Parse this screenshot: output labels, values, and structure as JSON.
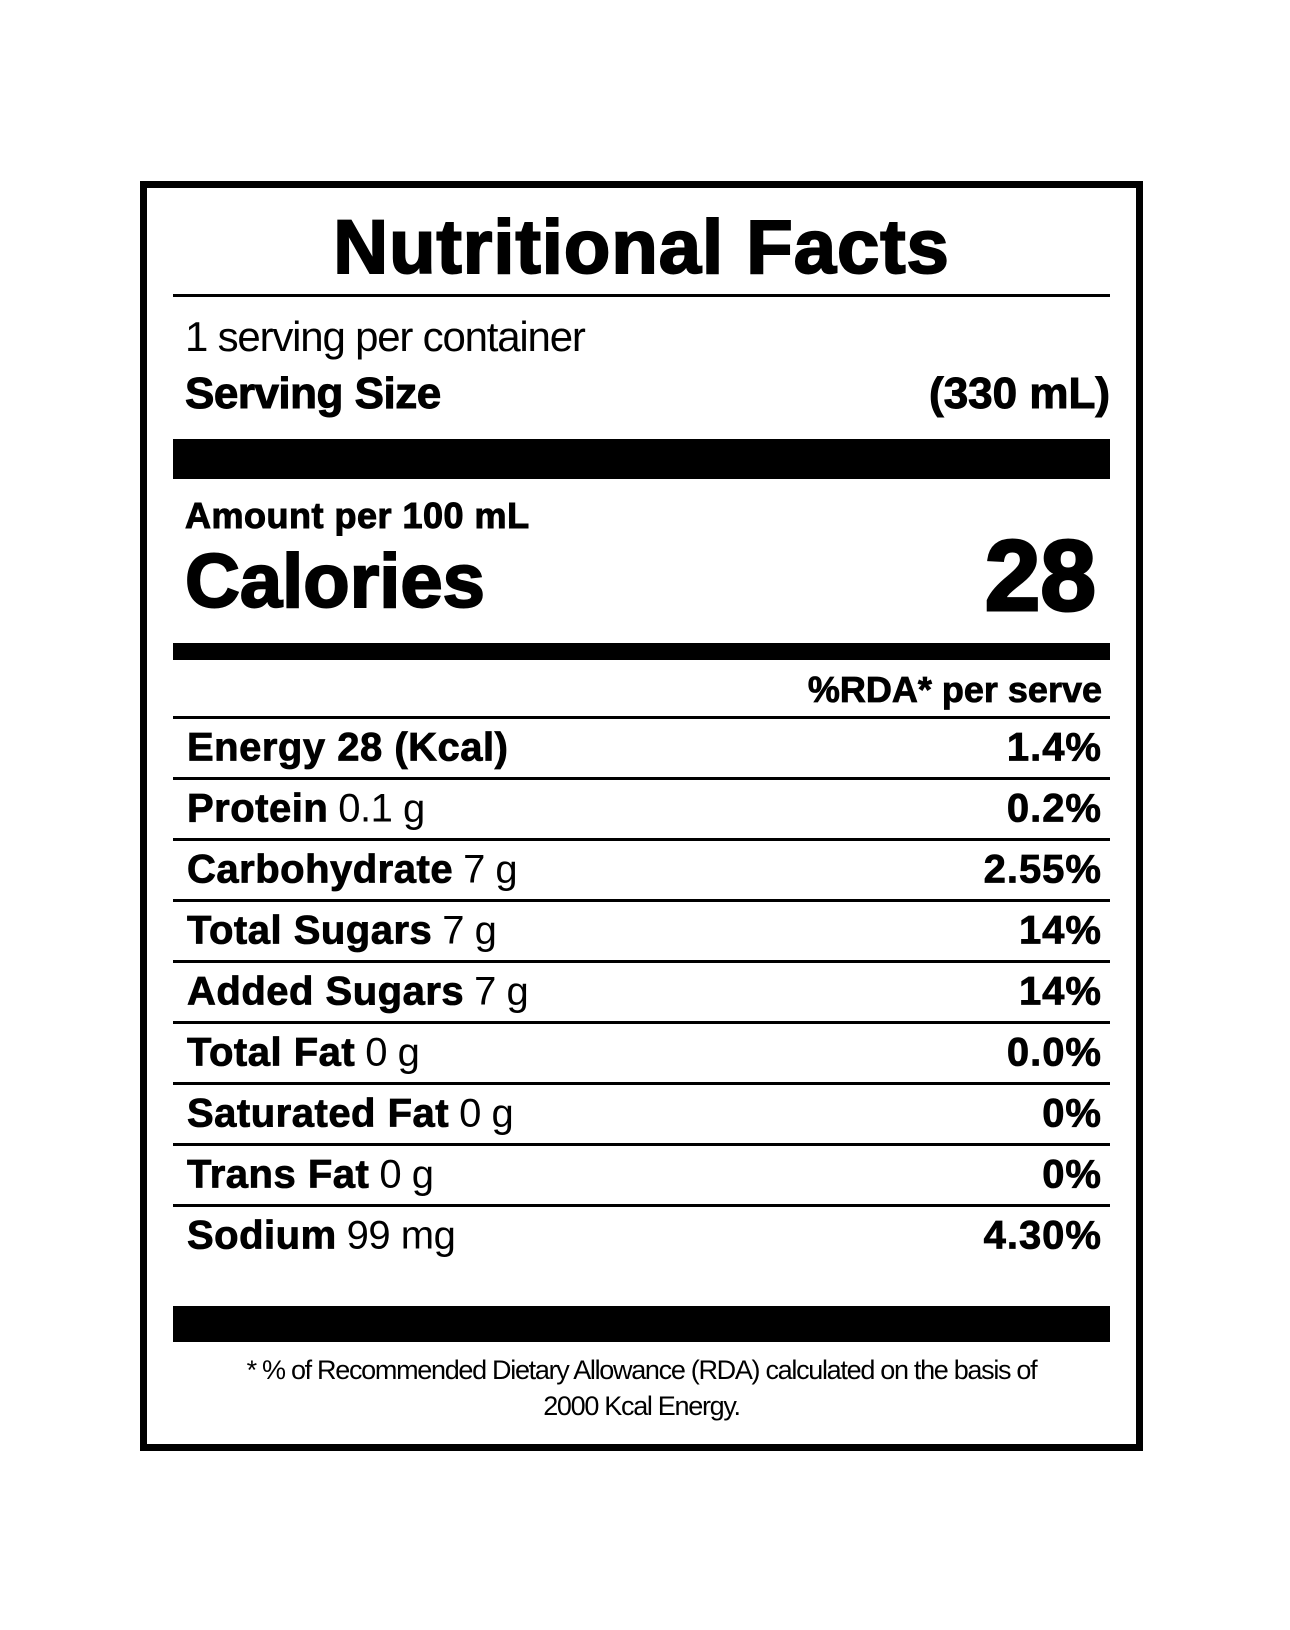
{
  "label": {
    "title": "Nutritional Facts",
    "servings_per_container": "1 serving per container",
    "serving_size_label": "Serving Size",
    "serving_size_value": "(330 mL)",
    "amount_per": "Amount per 100 mL",
    "calories_label": "Calories",
    "calories_value": "28",
    "rda_header": "%RDA* per serve",
    "nutrients": [
      {
        "name": "Energy 28 (Kcal)",
        "amount": "",
        "rda": "1.4%"
      },
      {
        "name": "Protein",
        "amount": "0.1 g",
        "rda": "0.2%"
      },
      {
        "name": "Carbohydrate",
        "amount": "7 g",
        "rda": "2.55%"
      },
      {
        "name": "Total Sugars",
        "amount": "7 g",
        "rda": "14%"
      },
      {
        "name": "Added Sugars",
        "amount": "7 g",
        "rda": "14%"
      },
      {
        "name": "Total Fat",
        "amount": "0 g",
        "rda": "0.0%"
      },
      {
        "name": "Saturated Fat",
        "amount": "0 g",
        "rda": "0%"
      },
      {
        "name": "Trans Fat",
        "amount": "0 g",
        "rda": "0%"
      },
      {
        "name": "Sodium",
        "amount": "99 mg",
        "rda": "4.30%"
      }
    ],
    "footnote_line1": "* % of Recommended Dietary Allowance (RDA) calculated on the basis of",
    "footnote_line2": "2000 Kcal Energy."
  }
}
